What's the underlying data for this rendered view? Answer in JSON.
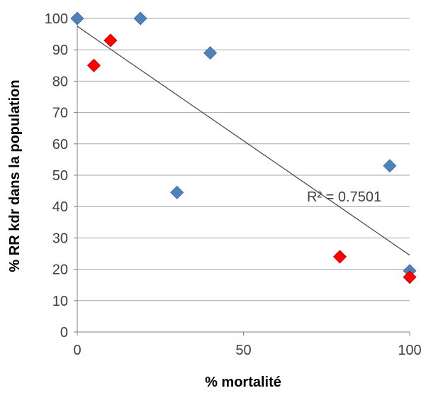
{
  "chart_data": {
    "type": "scatter",
    "title": "",
    "xlabel": "% mortalité",
    "ylabel": "% RR kdr dans la population",
    "xlim": [
      0,
      100
    ],
    "ylim": [
      0,
      100
    ],
    "x_ticks": [
      "0",
      "50",
      "100"
    ],
    "y_ticks": [
      "0",
      "10",
      "20",
      "30",
      "40",
      "50",
      "60",
      "70",
      "80",
      "90",
      "100"
    ],
    "grid": "horizontal",
    "legend": "none",
    "series": [
      {
        "color": "#4F81BD",
        "marker": "diamond",
        "points": [
          {
            "x": 0,
            "y": 100
          },
          {
            "x": 19,
            "y": 100
          },
          {
            "x": 40,
            "y": 89
          },
          {
            "x": 30,
            "y": 44.5
          },
          {
            "x": 94,
            "y": 53
          },
          {
            "x": 100,
            "y": 19.5
          }
        ]
      },
      {
        "color": "#FF0000",
        "marker": "diamond",
        "points": [
          {
            "x": 5,
            "y": 85
          },
          {
            "x": 10,
            "y": 93
          },
          {
            "x": 79,
            "y": 24
          },
          {
            "x": 100,
            "y": 17.5
          }
        ]
      }
    ],
    "trendline": {
      "type": "linear",
      "from": {
        "x": 0,
        "y": 97.5
      },
      "to": {
        "x": 100,
        "y": 24.5
      },
      "color": "#404040"
    },
    "annotations": [
      {
        "text": "R² = 0.7501"
      }
    ],
    "colors": {
      "gridline": "#A6A6A6",
      "axis": "#808080",
      "tick_text": "#404040"
    }
  }
}
